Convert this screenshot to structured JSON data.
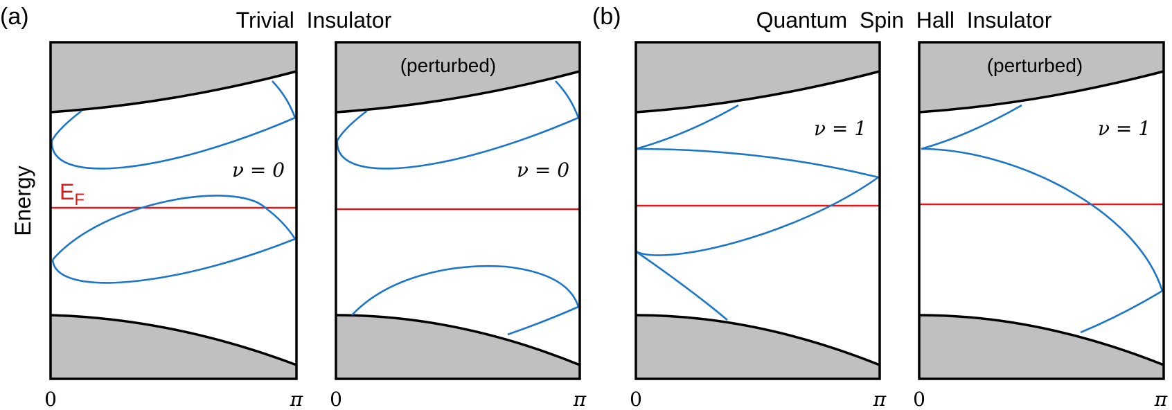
{
  "figure": {
    "panel_a_label": "(a)",
    "panel_b_label": "(b)",
    "title_a": "Trivial  Insulator",
    "title_b": "Quantum  Spin  Hall  Insulator",
    "y_axis_label": "Energy",
    "fermi_label_main": "E",
    "fermi_label_sub": "F",
    "x_tick_start": "0",
    "x_tick_end": "π"
  },
  "panels": [
    {
      "id": "trivial",
      "tag": "",
      "invariant": "ν = 0"
    },
    {
      "id": "trivial-perturbed",
      "tag": "(perturbed)",
      "invariant": "ν = 0"
    },
    {
      "id": "qsh",
      "tag": "",
      "invariant": "ν = 1"
    },
    {
      "id": "qsh-perturbed",
      "tag": "(perturbed)",
      "invariant": "ν = 1"
    }
  ],
  "colors": {
    "bulk_band": "#c0c0c0",
    "edge_state": "#1b75c9",
    "fermi_level": "#e01818",
    "frame": "#000000"
  }
}
